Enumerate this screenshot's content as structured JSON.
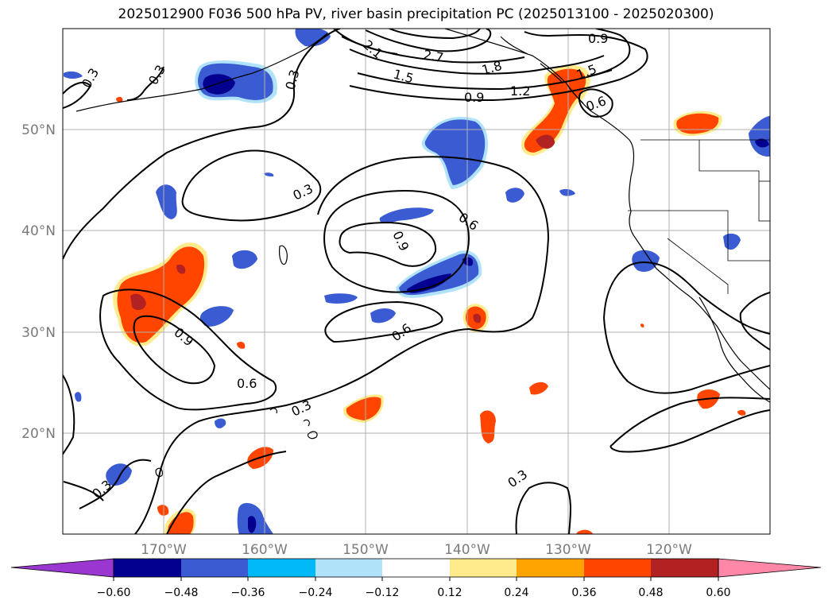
{
  "title": "2025012900 F036 500 hPa PV, river basin precipitation PC (2025013100 - 2025020300)",
  "lat_labels": [
    "50°N",
    "40°N",
    "30°N",
    "20°N"
  ],
  "lon_labels": [
    "170°W",
    "160°W",
    "150°W",
    "140°W",
    "130°W",
    "120°W"
  ],
  "contour_labels": [
    "0.3",
    "0.3",
    "0.3",
    "0.3",
    "0.3",
    "0.3",
    "0.3",
    "0.6",
    "0.6",
    "0.6",
    "0.6",
    "0.9",
    "0.9",
    "0.9",
    "0.9",
    "1.2",
    "1.5",
    "1.5",
    "1.8",
    "2.1",
    "2.7"
  ],
  "colorbar": {
    "ticks": [
      "−0.60",
      "−0.48",
      "−0.36",
      "−0.24",
      "−0.12",
      "0.12",
      "0.24",
      "0.36",
      "0.48",
      "0.60"
    ],
    "colors": [
      "#9a37d0",
      "#03008f",
      "#3a5bd2",
      "#00b9f6",
      "#b0e2fa",
      "#ffffff",
      "#ffeb8c",
      "#ffa400",
      "#ff4500",
      "#b22222",
      "#ff87a8"
    ]
  },
  "gridlines": true
}
